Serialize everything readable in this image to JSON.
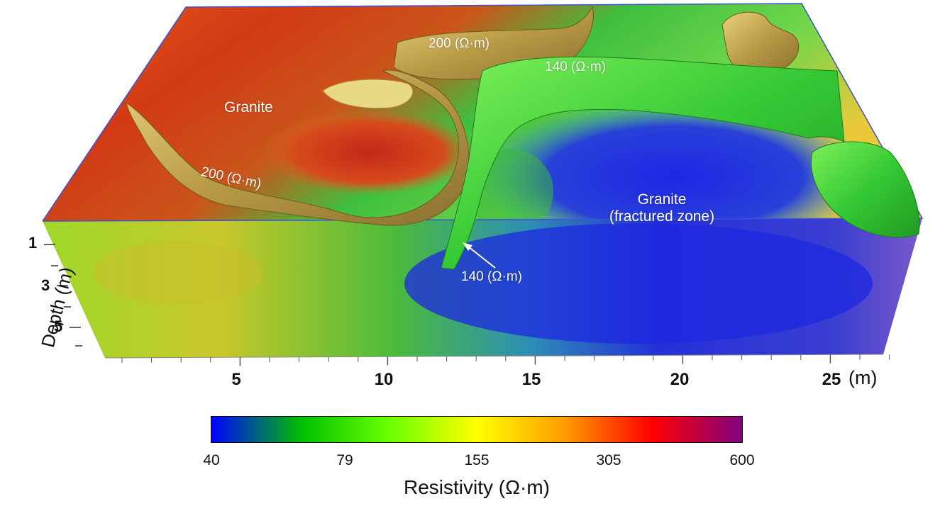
{
  "annotations": {
    "granite_top": "Granite",
    "granite_fractured_line1": "Granite",
    "granite_fractured_line2": "(fractured zone)",
    "iso200_left": "200 (Ω·m)",
    "iso200_top": "200 (Ω·m)",
    "iso140_top": "140 (Ω·m)",
    "iso140_arrow": "140 (Ω·m)"
  },
  "x_axis": {
    "ticks": [
      "5",
      "10",
      "15",
      "20",
      "25"
    ],
    "unit": "(m)"
  },
  "y_axis": {
    "title": "Depth (m)",
    "ticks": [
      "1",
      "3",
      "5"
    ]
  },
  "colorbar": {
    "title": "Resistivity (Ω·m)",
    "ticks": [
      "40",
      "79",
      "155",
      "305",
      "600"
    ],
    "stops": [
      "#0000ff",
      "#00c000",
      "#66ff00",
      "#ffff00",
      "#ff9900",
      "#ff0000",
      "#800080"
    ]
  },
  "colors": {
    "frame": "#3a52d8",
    "iso_200": "#c9b25a",
    "iso_140": "#3fcf3f"
  }
}
